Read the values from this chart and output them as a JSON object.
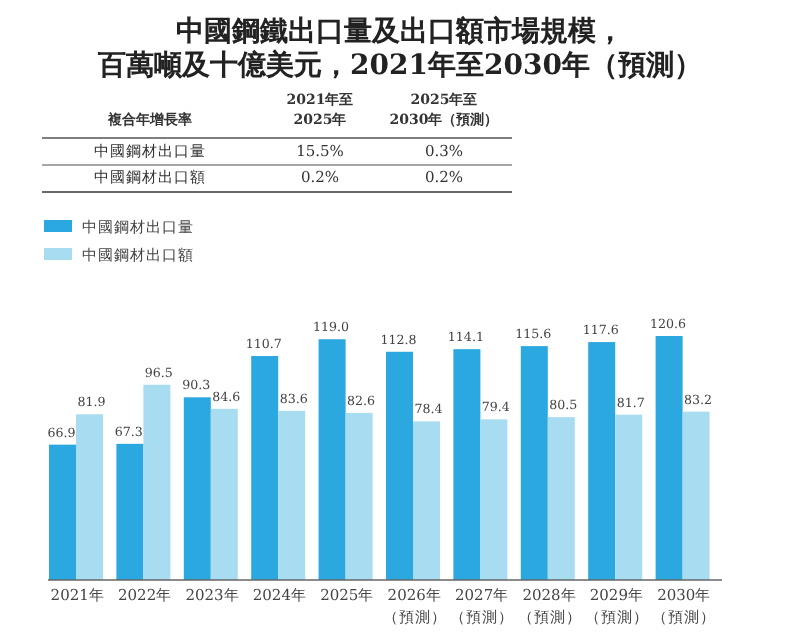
{
  "chart_data": {
    "type": "bar",
    "title": "中國鋼鐵出口量及出口額市場規模，百萬噸及十億美元，2021年至2030年（預測）",
    "categories": [
      "2021年",
      "2022年",
      "2023年",
      "2024年",
      "2025年",
      "2026年（預測）",
      "2027年（預測）",
      "2028年（預測）",
      "2029年（預測）",
      "2030年（預測）"
    ],
    "series": [
      {
        "name": "中國鋼材出口量",
        "color": "#2ca8e0",
        "values": [
          66.9,
          67.3,
          90.3,
          110.7,
          119.0,
          112.8,
          114.1,
          115.6,
          117.6,
          120.6
        ],
        "value_labels": [
          "66.9",
          "67.3",
          "90.3",
          "110.7",
          "119.0",
          "112.8",
          "114.1",
          "115.6",
          "117.6",
          "120.6"
        ]
      },
      {
        "name": "中國鋼材出口額",
        "color": "#a8dcf1",
        "values": [
          81.9,
          96.5,
          84.6,
          83.6,
          82.6,
          78.4,
          79.4,
          80.5,
          81.7,
          83.2
        ],
        "value_labels": [
          "81.9",
          "96.5",
          "84.6",
          "83.6",
          "82.6",
          "78.4",
          "79.4",
          "80.5",
          "81.7",
          "83.2"
        ]
      }
    ],
    "legend": "top left",
    "annotations": [
      "複合年增長率",
      "2021年至\n2025年",
      "2025年至\n2030年（預測）",
      "中國鋼材出口量",
      "15.5%",
      "0.3%",
      "中國鋼材出口額",
      "0.2%",
      "0.2%"
    ]
  }
}
